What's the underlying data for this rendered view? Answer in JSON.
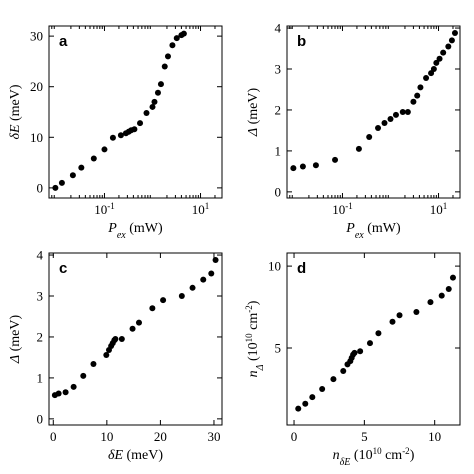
{
  "chart_data": [
    {
      "panel": "a",
      "type": "scatter",
      "xscale": "log",
      "xlim": [
        0.007,
        28
      ],
      "ylim": [
        -2,
        32
      ],
      "xticks": [
        {
          "v": 0.1,
          "base": "10",
          "exp": "-1"
        },
        {
          "v": 10,
          "base": "10",
          "exp": "1"
        }
      ],
      "yticks": [
        0,
        10,
        20,
        30
      ],
      "xlabel": {
        "main": "P",
        "sub": "ex",
        "rest": " (mW)"
      },
      "ylabel": {
        "main": "δE",
        "rest": " (meV)"
      },
      "x": [
        0.0095,
        0.013,
        0.022,
        0.033,
        0.06,
        0.1,
        0.15,
        0.22,
        0.28,
        0.32,
        0.36,
        0.42,
        0.55,
        0.75,
        1.0,
        1.1,
        1.3,
        1.5,
        1.8,
        2.1,
        2.6,
        3.2,
        4.0,
        4.5
      ],
      "y": [
        0.0,
        1.0,
        2.5,
        4.0,
        5.8,
        7.6,
        9.9,
        10.4,
        10.8,
        11.1,
        11.4,
        11.6,
        12.8,
        14.8,
        16.0,
        17.0,
        18.8,
        20.5,
        24.0,
        26.0,
        28.2,
        29.6,
        30.2,
        30.5
      ]
    },
    {
      "panel": "b",
      "type": "scatter",
      "xscale": "log",
      "xlim": [
        0.007,
        28
      ],
      "ylim": [
        -0.15,
        4.05
      ],
      "xticks": [
        {
          "v": 0.1,
          "base": "10",
          "exp": "-1"
        },
        {
          "v": 10,
          "base": "10",
          "exp": "1"
        }
      ],
      "yticks": [
        0,
        1,
        2,
        3,
        4
      ],
      "xlabel": {
        "main": "P",
        "sub": "ex",
        "rest": " (mW)"
      },
      "ylabel": {
        "main": "Δ",
        "rest": " (meV)"
      },
      "x": [
        0.0095,
        0.015,
        0.028,
        0.07,
        0.22,
        0.36,
        0.55,
        0.75,
        1.0,
        1.3,
        1.8,
        2.3,
        3.0,
        3.6,
        4.2,
        5.5,
        7.0,
        8.0,
        9.0,
        10.5,
        12.5,
        16,
        19,
        22
      ],
      "y": [
        0.58,
        0.62,
        0.65,
        0.78,
        1.05,
        1.34,
        1.56,
        1.68,
        1.78,
        1.88,
        1.95,
        1.95,
        2.2,
        2.35,
        2.55,
        2.78,
        2.9,
        3.0,
        3.15,
        3.25,
        3.4,
        3.55,
        3.7,
        3.88
      ]
    },
    {
      "panel": "c",
      "type": "scatter",
      "xlim": [
        -0.8,
        31.5
      ],
      "ylim": [
        -0.15,
        4.05
      ],
      "xticks": [
        {
          "v": 0,
          "label": "0"
        },
        {
          "v": 10,
          "label": "10"
        },
        {
          "v": 20,
          "label": "20"
        },
        {
          "v": 30,
          "label": "30"
        }
      ],
      "yticks": [
        0,
        1,
        2,
        3,
        4
      ],
      "xlabel": {
        "main": "δE",
        "rest": " (meV)"
      },
      "ylabel": {
        "main": "Δ",
        "rest": " (meV)"
      },
      "x": [
        0.3,
        1.0,
        2.3,
        3.8,
        5.6,
        7.5,
        9.9,
        10.4,
        10.8,
        11.1,
        11.4,
        11.6,
        12.8,
        14.8,
        16.0,
        18.5,
        20.5,
        24.0,
        26.0,
        28.0,
        29.5,
        30.3
      ],
      "y": [
        0.58,
        0.62,
        0.65,
        0.78,
        1.05,
        1.34,
        1.56,
        1.68,
        1.78,
        1.85,
        1.92,
        1.95,
        1.95,
        2.2,
        2.35,
        2.7,
        2.9,
        3.0,
        3.2,
        3.4,
        3.55,
        3.88
      ]
    },
    {
      "panel": "d",
      "type": "scatter",
      "xlim": [
        -0.5,
        11.8
      ],
      "ylim": [
        0.3,
        10.8
      ],
      "xticks": [
        {
          "v": 0,
          "label": "0"
        },
        {
          "v": 5,
          "label": "5"
        },
        {
          "v": 10,
          "label": "10"
        }
      ],
      "yticks": [
        5,
        10
      ],
      "xlabel": {
        "main": "n",
        "sub": "δE",
        "rest": " (10",
        "sup": "10",
        "rest2": " cm",
        "sup2": "-2",
        "rest3": ")"
      },
      "ylabel": {
        "main": "n",
        "sub": "Δ",
        "rest": " (10",
        "sup": "10",
        "rest2": " cm",
        "sup2": "-2",
        "rest3": ")"
      },
      "x": [
        0.3,
        0.8,
        1.3,
        2.0,
        2.8,
        3.5,
        3.8,
        4.0,
        4.1,
        4.2,
        4.3,
        4.7,
        5.4,
        6.0,
        7.0,
        7.5,
        8.7,
        9.7,
        10.5,
        11.0,
        11.3
      ],
      "y": [
        1.3,
        1.6,
        2.0,
        2.5,
        3.1,
        3.6,
        4.0,
        4.2,
        4.4,
        4.6,
        4.7,
        4.8,
        5.3,
        5.9,
        6.6,
        7.0,
        7.2,
        7.8,
        8.2,
        8.6,
        9.3
      ]
    }
  ]
}
